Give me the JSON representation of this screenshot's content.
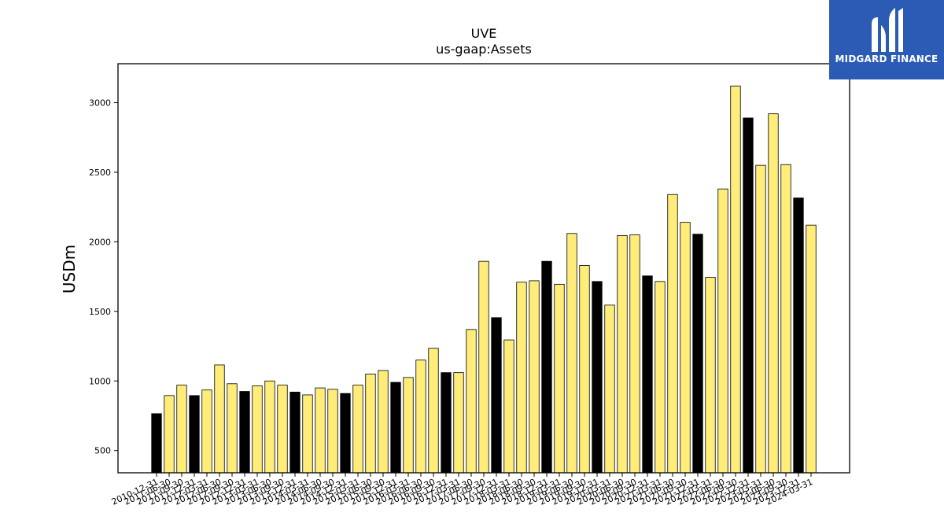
{
  "chart_data": {
    "type": "bar",
    "title": "UVE",
    "subtitle": "us-gaap:Assets",
    "xlabel": "",
    "ylabel": "USDm",
    "ylim": [
      340,
      3280
    ],
    "yticks": [
      500,
      1000,
      1500,
      2000,
      2500,
      3000
    ],
    "grid": false,
    "colors": {
      "q4": "#000000",
      "other": "#ffec79",
      "edge": "#000000"
    },
    "categories": [
      "2010-12-31",
      "2011-06-30",
      "2011-09-30",
      "2011-12-31",
      "2012-03-31",
      "2012-06-30",
      "2012-09-30",
      "2012-12-31",
      "2013-03-31",
      "2013-06-30",
      "2013-09-30",
      "2013-12-31",
      "2014-03-31",
      "2014-06-30",
      "2014-09-30",
      "2014-12-31",
      "2015-03-31",
      "2015-06-30",
      "2015-09-30",
      "2015-12-31",
      "2016-03-31",
      "2016-06-30",
      "2016-09-30",
      "2016-12-31",
      "2017-03-31",
      "2017-06-30",
      "2017-09-30",
      "2017-12-31",
      "2018-03-31",
      "2018-06-30",
      "2018-09-30",
      "2018-12-31",
      "2019-03-31",
      "2019-06-30",
      "2019-09-30",
      "2019-12-31",
      "2020-03-31",
      "2020-06-30",
      "2020-09-30",
      "2020-12-31",
      "2021-03-31",
      "2021-06-30",
      "2021-09-30",
      "2021-12-31",
      "2022-03-31",
      "2022-06-30",
      "2022-09-30",
      "2022-12-31",
      "2023-03-31",
      "2023-06-30",
      "2023-09-30",
      "2023-12-31",
      "2024-03-31"
    ],
    "values": [
      765,
      895,
      970,
      895,
      935,
      1115,
      980,
      925,
      965,
      1000,
      970,
      920,
      900,
      950,
      940,
      910,
      970,
      1050,
      1075,
      990,
      1025,
      1150,
      1235,
      1060,
      1060,
      1370,
      1860,
      1455,
      1295,
      1710,
      1720,
      1860,
      1695,
      2060,
      1830,
      1715,
      1545,
      2045,
      2050,
      1755,
      1715,
      2340,
      2140,
      2055,
      1745,
      2380,
      3120,
      2890,
      2550,
      2920,
      2555,
      2315,
      2120
    ],
    "q4_flags": [
      true,
      false,
      false,
      true,
      false,
      false,
      false,
      true,
      false,
      false,
      false,
      true,
      false,
      false,
      false,
      true,
      false,
      false,
      false,
      true,
      false,
      false,
      false,
      true,
      false,
      false,
      false,
      true,
      false,
      false,
      false,
      true,
      false,
      false,
      false,
      true,
      false,
      false,
      false,
      true,
      false,
      false,
      false,
      true,
      false,
      false,
      false,
      true,
      false,
      false,
      false,
      true,
      false
    ]
  },
  "logo": {
    "text": "MIDGARD FINANCE"
  }
}
